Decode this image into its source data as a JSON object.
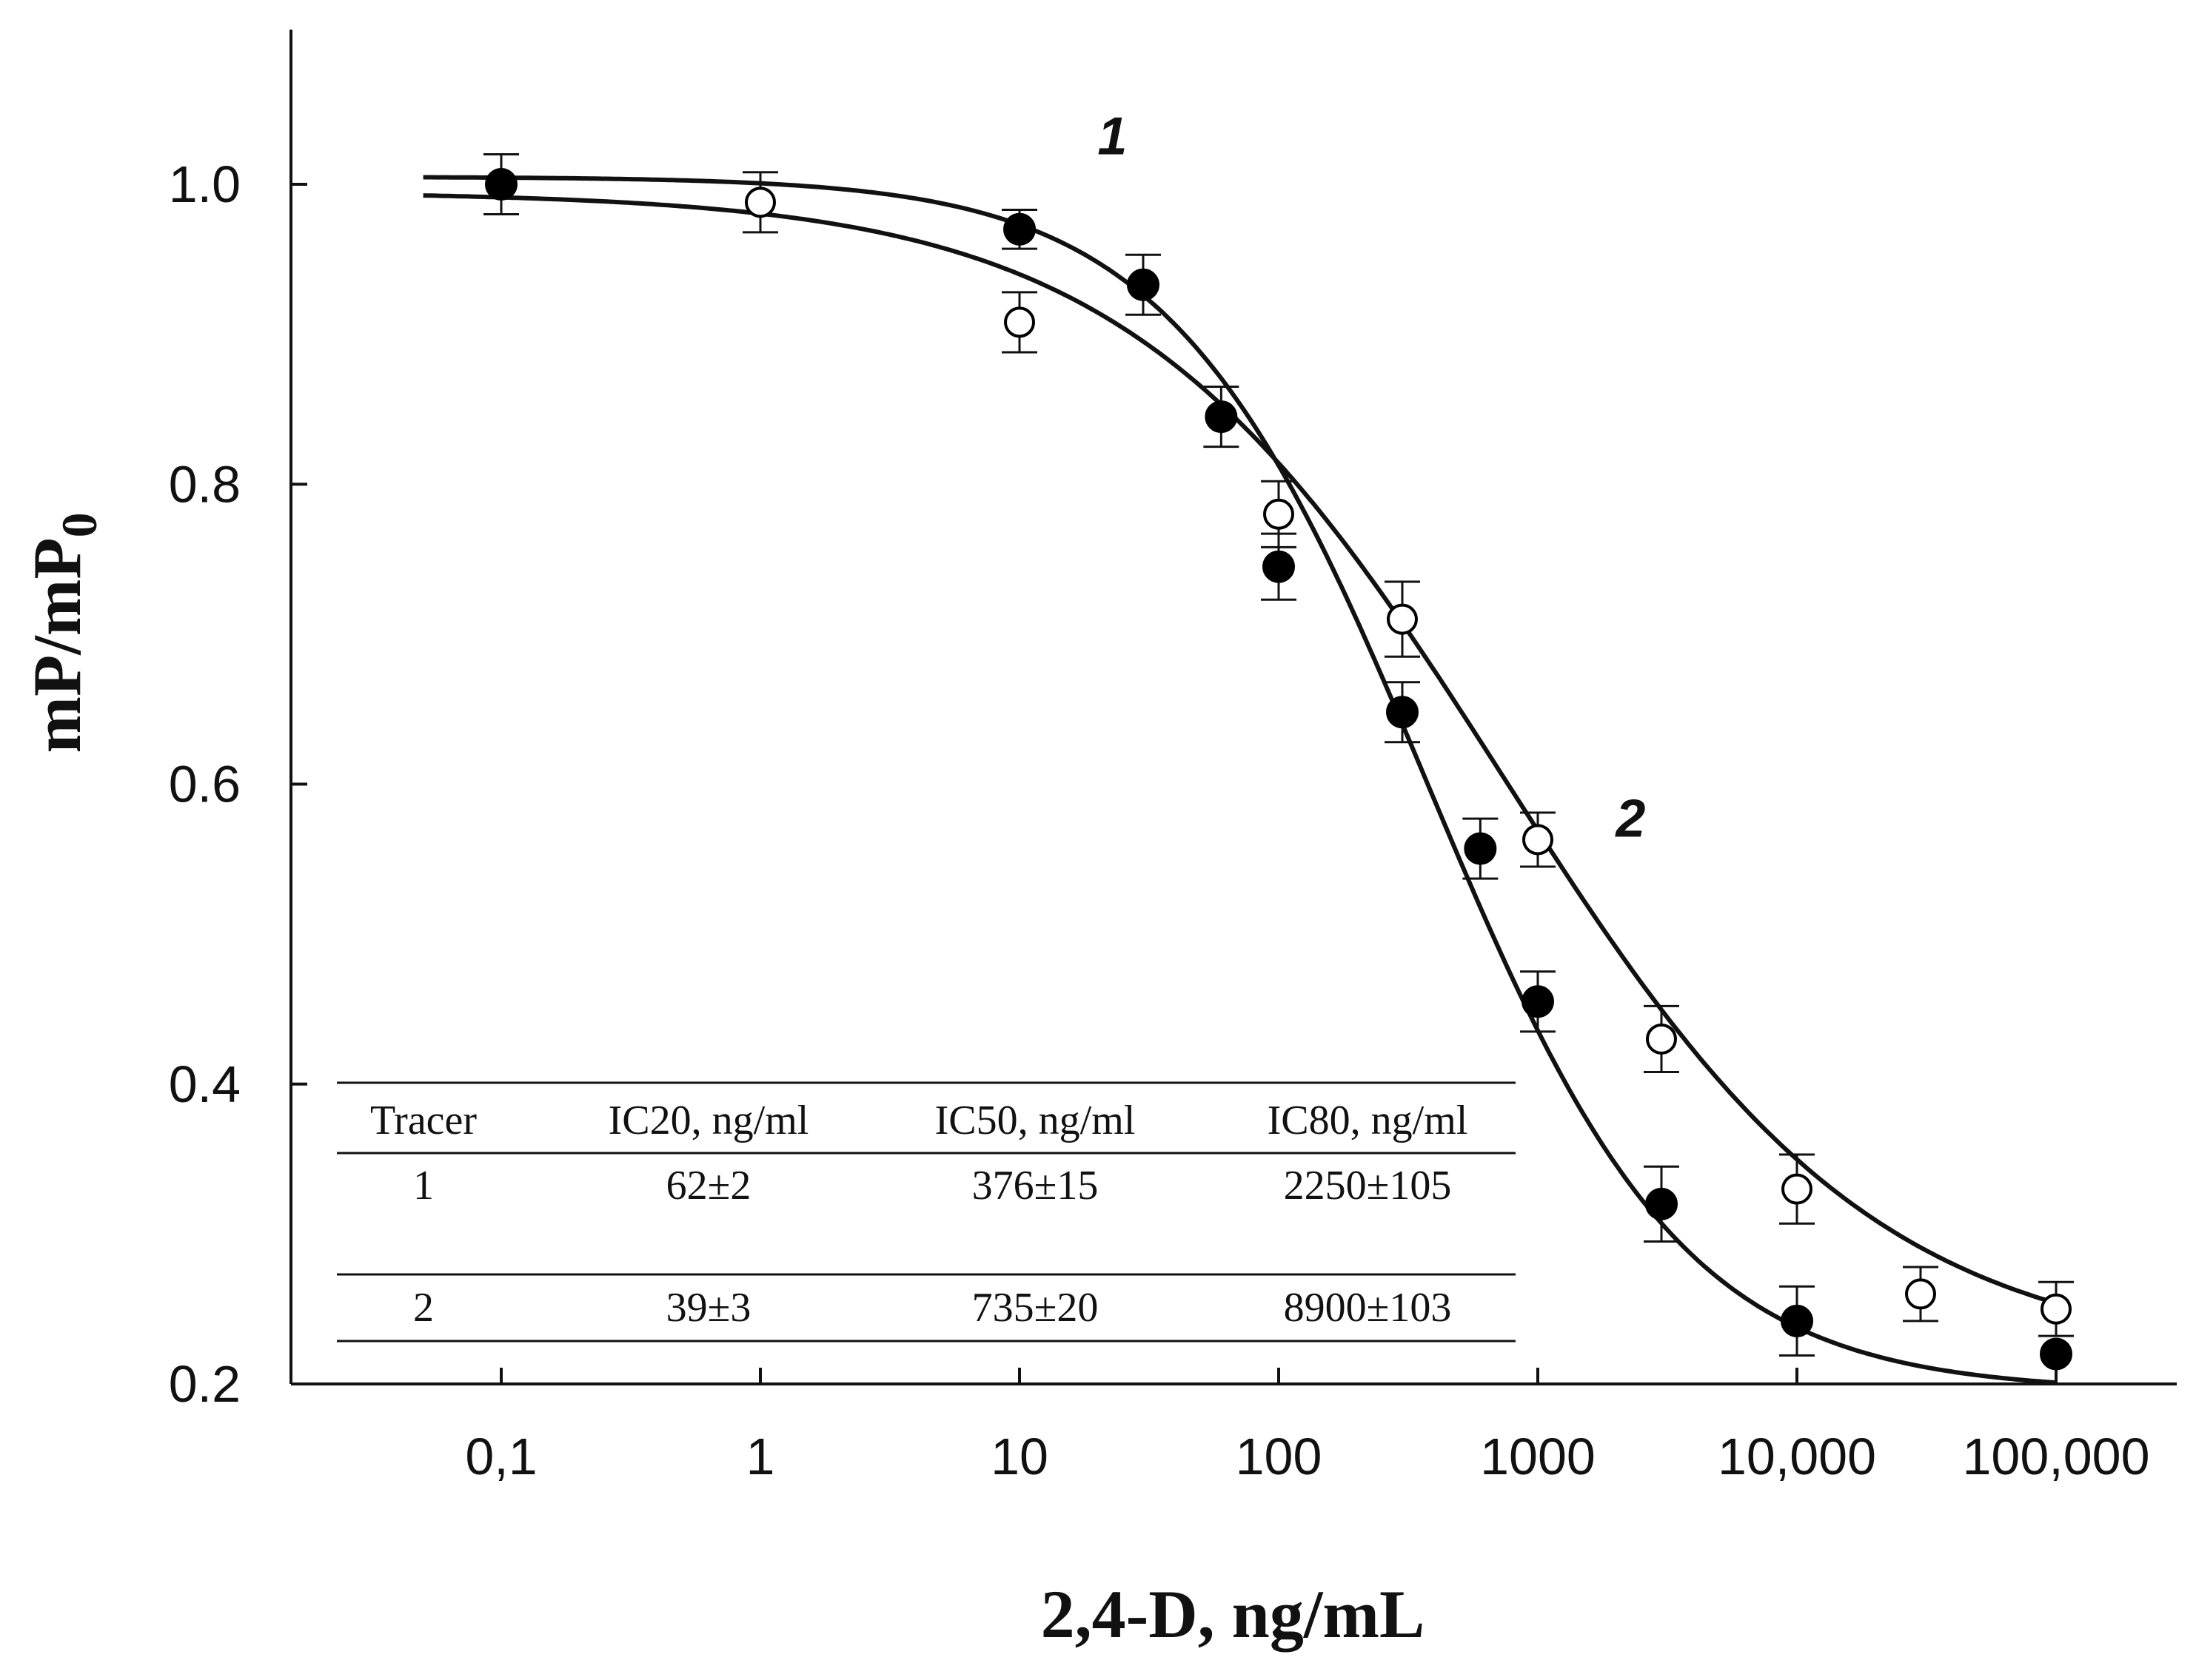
{
  "chart_data": {
    "type": "scatter",
    "title": "",
    "xlabel": "2,4-D, ng/mL",
    "ylabel_main": "mP/mP",
    "ylabel_sub": "0",
    "xscale": "log",
    "xlim": [
      0.02,
      200000
    ],
    "ylim": [
      0.2,
      1.1
    ],
    "x_ticks": [
      {
        "value": 0.1,
        "label": "0,1"
      },
      {
        "value": 1,
        "label": "1"
      },
      {
        "value": 10,
        "label": "10"
      },
      {
        "value": 100,
        "label": "100"
      },
      {
        "value": 1000,
        "label": "1000"
      },
      {
        "value": 10000,
        "label": "10,000"
      },
      {
        "value": 100000,
        "label": "100,000"
      }
    ],
    "y_ticks": [
      {
        "value": 0.2,
        "label": "0.2"
      },
      {
        "value": 0.4,
        "label": "0.4"
      },
      {
        "value": 0.6,
        "label": "0.6"
      },
      {
        "value": 0.8,
        "label": "0.8"
      },
      {
        "value": 1.0,
        "label": "1.0"
      }
    ],
    "series": [
      {
        "name": "1",
        "marker": "filled-circle",
        "label_pos": {
          "x": 20,
          "y": 1.02
        },
        "fit": {
          "top": 1.005,
          "bottom": 0.195,
          "ic50": 376,
          "hill": 0.88
        },
        "points": [
          {
            "x": 0.1,
            "y": 1.0,
            "err": 0.02
          },
          {
            "x": 10,
            "y": 0.97,
            "err": 0.013
          },
          {
            "x": 30,
            "y": 0.933,
            "err": 0.02
          },
          {
            "x": 60,
            "y": 0.845,
            "err": 0.02
          },
          {
            "x": 100,
            "y": 0.745,
            "err": 0.022
          },
          {
            "x": 300,
            "y": 0.648,
            "err": 0.02
          },
          {
            "x": 600,
            "y": 0.557,
            "err": 0.02
          },
          {
            "x": 1000,
            "y": 0.455,
            "err": 0.02
          },
          {
            "x": 3000,
            "y": 0.32,
            "err": 0.025
          },
          {
            "x": 10000,
            "y": 0.242,
            "err": 0.023
          },
          {
            "x": 100000,
            "y": 0.22,
            "err": 0.0
          }
        ]
      },
      {
        "name": "2",
        "marker": "open-circle",
        "label_pos": {
          "x": 2000,
          "y": 0.565
        },
        "fit": {
          "top": 0.995,
          "bottom": 0.215,
          "ic50": 735,
          "hill": 0.6
        },
        "points": [
          {
            "x": 1,
            "y": 0.988,
            "err": 0.02
          },
          {
            "x": 10,
            "y": 0.908,
            "err": 0.02
          },
          {
            "x": 100,
            "y": 0.78,
            "err": 0.022
          },
          {
            "x": 300,
            "y": 0.71,
            "err": 0.025
          },
          {
            "x": 1000,
            "y": 0.563,
            "err": 0.018
          },
          {
            "x": 3000,
            "y": 0.43,
            "err": 0.022
          },
          {
            "x": 10000,
            "y": 0.33,
            "err": 0.023
          },
          {
            "x": 30000,
            "y": 0.26,
            "err": 0.018
          },
          {
            "x": 100000,
            "y": 0.25,
            "err": 0.018
          }
        ]
      }
    ],
    "table": {
      "headers": [
        "Tracer",
        "IC20, ng/ml",
        "IC50, ng/ml",
        "IC80, ng/ml"
      ],
      "rows": [
        [
          "1",
          "62±2",
          "376±15",
          "2250±105"
        ],
        [
          "2",
          "39±3",
          "735±20",
          "8900±103"
        ]
      ]
    }
  }
}
